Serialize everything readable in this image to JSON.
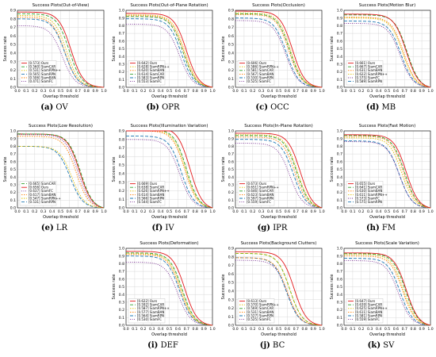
{
  "series_style": [
    {
      "key": "ours",
      "color": "#e31a1c",
      "dash": ""
    },
    {
      "key": "siamcar",
      "color": "#33a02c",
      "dash": "4,2"
    },
    {
      "key": "siamrpnpp",
      "color": "#e0c000",
      "dash": "1.5,1.5"
    },
    {
      "key": "siamban",
      "color": "#ff7f00",
      "dash": "1.5,1.5"
    },
    {
      "key": "siamrpn",
      "color": "#1f78b4",
      "dash": "4,2"
    },
    {
      "key": "siamfc",
      "color": "#7b3294",
      "dash": "1,1.5"
    }
  ],
  "chart_data": [
    {
      "type": "line",
      "title": "Success Plots(Out-of-View)",
      "caption_letter": "(a)",
      "caption_text": "OV",
      "xlabel": "Overlap threshold",
      "ylabel": "Success rate",
      "xlim": [
        0,
        1
      ],
      "ylim": [
        0,
        0.9
      ],
      "legend": [
        {
          "label": "[0.573] Ours",
          "key": "ours",
          "auc": 0.573,
          "start": 0.88,
          "knee": 0.62
        },
        {
          "label": "[0.560] SiamCAR",
          "key": "siamcar",
          "auc": 0.56,
          "start": 0.86,
          "knee": 0.6
        },
        {
          "label": "[0.531] SiamRPN++",
          "key": "siamrpnpp",
          "auc": 0.531,
          "start": 0.84,
          "knee": 0.57
        },
        {
          "label": "[0.505] SiamRPN",
          "key": "siamrpn",
          "auc": 0.505,
          "start": 0.8,
          "knee": 0.55
        },
        {
          "label": "[0.506] SiamBAN",
          "key": "siamban",
          "auc": 0.506,
          "start": 0.82,
          "knee": 0.55
        },
        {
          "label": "[0.471] SiamFC",
          "key": "siamfc",
          "auc": 0.471,
          "start": 0.72,
          "knee": 0.52
        }
      ]
    },
    {
      "type": "line",
      "title": "Success Plots(Out-of-Plane Rotation)",
      "caption_letter": "(b)",
      "caption_text": "OPR",
      "xlabel": "Overlap threshold",
      "ylabel": "Success rate",
      "xlim": [
        0,
        1
      ],
      "ylim": [
        0,
        1.0
      ],
      "legend": [
        {
          "label": "[0.642] Ours",
          "key": "ours",
          "auc": 0.642,
          "start": 0.96,
          "knee": 0.7
        },
        {
          "label": "[0.628] SiamRPN++",
          "key": "siamrpnpp",
          "auc": 0.628,
          "start": 0.94,
          "knee": 0.68
        },
        {
          "label": "[0.620] SiamBAN",
          "key": "siamban",
          "auc": 0.62,
          "start": 0.93,
          "knee": 0.67
        },
        {
          "label": "[0.614] SiamCAR",
          "key": "siamcar",
          "auc": 0.614,
          "start": 0.92,
          "knee": 0.66
        },
        {
          "label": "[0.583] SiamRPN",
          "key": "siamrpn",
          "auc": 0.583,
          "start": 0.89,
          "knee": 0.64
        },
        {
          "label": "[0.553] SiamFC",
          "key": "siamfc",
          "auc": 0.553,
          "start": 0.82,
          "knee": 0.62
        }
      ]
    },
    {
      "type": "line",
      "title": "Success Plots(Occlusion)",
      "caption_letter": "(c)",
      "caption_text": "OCC",
      "xlabel": "Overlap threshold",
      "ylabel": "Success rate",
      "xlim": [
        0,
        1
      ],
      "ylim": [
        0,
        0.9
      ],
      "legend": [
        {
          "label": "[0.606] Ours",
          "key": "ours",
          "auc": 0.606,
          "start": 0.89,
          "knee": 0.66
        },
        {
          "label": "[0.586] SiamRPN++",
          "key": "siamrpnpp",
          "auc": 0.586,
          "start": 0.87,
          "knee": 0.64
        },
        {
          "label": "[0.581] SiamCAR",
          "key": "siamcar",
          "auc": 0.581,
          "start": 0.86,
          "knee": 0.63
        },
        {
          "label": "[0.567] SiamBAN",
          "key": "siamban",
          "auc": 0.567,
          "start": 0.85,
          "knee": 0.62
        },
        {
          "label": "[0.530] SiamRPN",
          "key": "siamrpn",
          "auc": 0.53,
          "start": 0.81,
          "knee": 0.59
        },
        {
          "label": "[0.525] SiamFC",
          "key": "siamfc",
          "auc": 0.525,
          "start": 0.78,
          "knee": 0.58
        }
      ]
    },
    {
      "type": "line",
      "title": "Success Plots(Motion Blur)",
      "caption_letter": "(d)",
      "caption_text": "MB",
      "xlabel": "Overlap threshold",
      "ylabel": "Success rate",
      "xlim": [
        0,
        1
      ],
      "ylim": [
        0,
        1.0
      ],
      "legend": [
        {
          "label": "[0.661] Ours",
          "key": "ours",
          "auc": 0.661,
          "start": 0.95,
          "knee": 0.72
        },
        {
          "label": "[0.667] SiamCAR",
          "key": "siamcar",
          "auc": 0.667,
          "start": 0.94,
          "knee": 0.73
        },
        {
          "label": "[0.631] SiamBAN",
          "key": "siamban",
          "auc": 0.631,
          "start": 0.91,
          "knee": 0.69
        },
        {
          "label": "[0.622] SiamRPN++",
          "key": "siamrpnpp",
          "auc": 0.622,
          "start": 0.9,
          "knee": 0.68
        },
        {
          "label": "[0.575] SiamFC",
          "key": "siamfc",
          "auc": 0.575,
          "start": 0.83,
          "knee": 0.65
        },
        {
          "label": "[0.589] SiamRPN",
          "key": "siamrpn",
          "auc": 0.589,
          "start": 0.86,
          "knee": 0.66
        }
      ]
    },
    {
      "type": "line",
      "title": "Success Plots(Low Resolution)",
      "caption_letter": "(e)",
      "caption_text": "LR",
      "xlabel": "Overlap threshold",
      "ylabel": "Success rate",
      "xlim": [
        0,
        1
      ],
      "ylim": [
        0,
        1.0
      ],
      "legend": [
        {
          "label": "[0.665] SiamCAR",
          "key": "siamcar",
          "auc": 0.665,
          "start": 0.96,
          "knee": 0.73
        },
        {
          "label": "[0.656] Ours",
          "key": "ours",
          "auc": 0.656,
          "start": 0.96,
          "knee": 0.72
        },
        {
          "label": "[0.637] SiamFC",
          "key": "siamfc",
          "auc": 0.637,
          "start": 0.95,
          "knee": 0.7
        },
        {
          "label": "[0.617] SiamBAN",
          "key": "siamban",
          "auc": 0.617,
          "start": 0.93,
          "knee": 0.68
        },
        {
          "label": "[0.547] SiamRPN++",
          "key": "siamrpnpp",
          "auc": 0.547,
          "start": 0.8,
          "knee": 0.63
        },
        {
          "label": "[0.531] SiamRPN",
          "key": "siamrpn",
          "auc": 0.531,
          "start": 0.8,
          "knee": 0.61
        }
      ]
    },
    {
      "type": "line",
      "title": "Success Plots(Illumination Variation)",
      "caption_letter": "(f)",
      "caption_text": "IV",
      "xlabel": "Overlap threshold",
      "ylabel": "Success rate",
      "xlim": [
        0,
        1
      ],
      "ylim": [
        0,
        0.9
      ],
      "legend": [
        {
          "label": "[0.669] Ours",
          "key": "ours",
          "auc": 0.669,
          "start": 0.94,
          "knee": 0.74
        },
        {
          "label": "[0.638] SiamCAR",
          "key": "siamcar",
          "auc": 0.638,
          "start": 0.92,
          "knee": 0.7
        },
        {
          "label": "[0.626] SiamRPN++",
          "key": "siamrpnpp",
          "auc": 0.626,
          "start": 0.91,
          "knee": 0.69
        },
        {
          "label": "[0.614] SiamBAN",
          "key": "siamban",
          "auc": 0.614,
          "start": 0.9,
          "knee": 0.68
        },
        {
          "label": "[0.566] SiamRPN",
          "key": "siamrpn",
          "auc": 0.566,
          "start": 0.84,
          "knee": 0.64
        },
        {
          "label": "[0.544] SiamFC",
          "key": "siamfc",
          "auc": 0.544,
          "start": 0.8,
          "knee": 0.62
        }
      ]
    },
    {
      "type": "line",
      "title": "Success Plots(In-Plane Rotation)",
      "caption_letter": "(g)",
      "caption_text": "IPR",
      "xlabel": "Overlap threshold",
      "ylabel": "Success rate",
      "xlim": [
        0,
        1
      ],
      "ylim": [
        0,
        1.0
      ],
      "legend": [
        {
          "label": "[0.673] Ours",
          "key": "ours",
          "auc": 0.673,
          "start": 0.97,
          "knee": 0.75
        },
        {
          "label": "[0.651] SiamRPN++",
          "key": "siamrpnpp",
          "auc": 0.651,
          "start": 0.95,
          "knee": 0.72
        },
        {
          "label": "[0.646] SiamCAR",
          "key": "siamcar",
          "auc": 0.646,
          "start": 0.94,
          "knee": 0.71
        },
        {
          "label": "[0.623] SiamBAN",
          "key": "siamban",
          "auc": 0.623,
          "start": 0.92,
          "knee": 0.69
        },
        {
          "label": "[0.597] SiamRPN",
          "key": "siamrpn",
          "auc": 0.597,
          "start": 0.89,
          "knee": 0.67
        },
        {
          "label": "[0.559] SiamFC",
          "key": "siamfc",
          "auc": 0.559,
          "start": 0.84,
          "knee": 0.63
        }
      ]
    },
    {
      "type": "line",
      "title": "Success Plots(Fast Motion)",
      "caption_letter": "(h)",
      "caption_text": "FM",
      "xlabel": "Overlap threshold",
      "ylabel": "Success rate",
      "xlim": [
        0,
        1
      ],
      "ylim": [
        0,
        1.0
      ],
      "legend": [
        {
          "label": "[0.655] Ours",
          "key": "ours",
          "auc": 0.655,
          "start": 0.95,
          "knee": 0.72
        },
        {
          "label": "[0.641] SiamCAR",
          "key": "siamcar",
          "auc": 0.641,
          "start": 0.94,
          "knee": 0.7
        },
        {
          "label": "[0.630] SiamBAN",
          "key": "siamban",
          "auc": 0.63,
          "start": 0.93,
          "knee": 0.69
        },
        {
          "label": "[0.611] SiamRPN++",
          "key": "siamrpnpp",
          "auc": 0.611,
          "start": 0.91,
          "knee": 0.67
        },
        {
          "label": "[0.573] SiamFC",
          "key": "siamfc",
          "auc": 0.573,
          "start": 0.86,
          "knee": 0.64
        },
        {
          "label": "[0.575] SiamRPN",
          "key": "siamrpn",
          "auc": 0.575,
          "start": 0.87,
          "knee": 0.64
        }
      ]
    },
    {
      "type": "line",
      "title": "Success Plots(Deformation)",
      "caption_letter": "(i)",
      "caption_text": "DEF",
      "xlabel": "Overlap threshold",
      "ylabel": "Success rate",
      "xlim": [
        0,
        1
      ],
      "ylim": [
        0,
        1.0
      ],
      "legend": [
        {
          "label": "[0.622] Ours",
          "key": "ours",
          "auc": 0.622,
          "start": 0.96,
          "knee": 0.68
        },
        {
          "label": "[0.592] SiamCAR",
          "key": "siamcar",
          "auc": 0.592,
          "start": 0.94,
          "knee": 0.65
        },
        {
          "label": "[0.587] SiamRPN++",
          "key": "siamrpnpp",
          "auc": 0.587,
          "start": 0.93,
          "knee": 0.64
        },
        {
          "label": "[0.577] SiamBAN",
          "key": "siamban",
          "auc": 0.577,
          "start": 0.92,
          "knee": 0.63
        },
        {
          "label": "[0.564] SiamRPN",
          "key": "siamrpn",
          "auc": 0.564,
          "start": 0.9,
          "knee": 0.62
        },
        {
          "label": "[0.530] SiamFC",
          "key": "siamfc",
          "auc": 0.53,
          "start": 0.82,
          "knee": 0.6
        }
      ]
    },
    {
      "type": "line",
      "title": "Success Plots(Background Clutters)",
      "caption_letter": "(j)",
      "caption_text": "BC",
      "xlabel": "Overlap threshold",
      "ylabel": "Success rate",
      "xlim": [
        0,
        1
      ],
      "ylim": [
        0,
        0.9
      ],
      "legend": [
        {
          "label": "[0.613] Ours",
          "key": "ours",
          "auc": 0.613,
          "start": 0.86,
          "knee": 0.68
        },
        {
          "label": "[0.570] SiamRPN++",
          "key": "siamrpnpp",
          "auc": 0.57,
          "start": 0.84,
          "knee": 0.63
        },
        {
          "label": "[0.569] SiamCAR",
          "key": "siamcar",
          "auc": 0.569,
          "start": 0.84,
          "knee": 0.63
        },
        {
          "label": "[0.531] SiamBAN",
          "key": "siamban",
          "auc": 0.531,
          "start": 0.79,
          "knee": 0.6
        },
        {
          "label": "[0.527] SiamRPN",
          "key": "siamrpn",
          "auc": 0.527,
          "start": 0.79,
          "knee": 0.59
        },
        {
          "label": "[0.525] SiamFC",
          "key": "siamfc",
          "auc": 0.525,
          "start": 0.76,
          "knee": 0.6
        }
      ]
    },
    {
      "type": "line",
      "title": "Success Plots(Scale Variation)",
      "caption_letter": "(k)",
      "caption_text": "SV",
      "xlabel": "Overlap threshold",
      "ylabel": "Success rate",
      "xlim": [
        0,
        1
      ],
      "ylim": [
        0,
        1.0
      ],
      "legend": [
        {
          "label": "[0.647] Ours",
          "key": "ours",
          "auc": 0.647,
          "start": 0.94,
          "knee": 0.72
        },
        {
          "label": "[0.639] SiamCAR",
          "key": "siamcar",
          "auc": 0.639,
          "start": 0.93,
          "knee": 0.71
        },
        {
          "label": "[0.625] SiamRPN++",
          "key": "siamrpnpp",
          "auc": 0.625,
          "start": 0.92,
          "knee": 0.69
        },
        {
          "label": "[0.611] SiamBAN",
          "key": "siamban",
          "auc": 0.611,
          "start": 0.9,
          "knee": 0.68
        },
        {
          "label": "[0.581] SiamRPN",
          "key": "siamrpn",
          "auc": 0.581,
          "start": 0.87,
          "knee": 0.65
        },
        {
          "label": "[0.559] SiamFC",
          "key": "siamfc",
          "auc": 0.559,
          "start": 0.84,
          "knee": 0.63
        }
      ]
    }
  ]
}
